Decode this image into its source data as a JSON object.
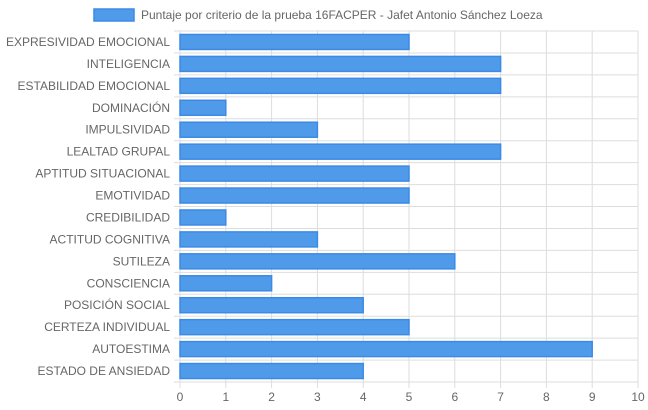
{
  "chart_data": {
    "type": "bar",
    "orientation": "horizontal",
    "categories": [
      "EXPRESIVIDAD EMOCIONAL",
      "INTELIGENCIA",
      "ESTABILIDAD EMOCIONAL",
      "DOMINACIÓN",
      "IMPULSIVIDAD",
      "LEALTAD GRUPAL",
      "APTITUD SITUACIONAL",
      "EMOTIVIDAD",
      "CREDIBILIDAD",
      "ACTITUD COGNITIVA",
      "SUTILEZA",
      "CONSCIENCIA",
      "POSICIÓN SOCIAL",
      "CERTEZA INDIVIDUAL",
      "AUTOESTIMA",
      "ESTADO DE ANSIEDAD"
    ],
    "series": [
      {
        "name": "Puntaje por criterio de la prueba 16FACPER - Jafet Antonio Sánchez Loeza",
        "values": [
          5,
          7,
          7,
          1,
          3,
          7,
          5,
          5,
          1,
          3,
          6,
          2,
          4,
          5,
          9,
          4
        ]
      }
    ],
    "xlim": [
      0,
      10
    ],
    "x_ticks": [
      "0",
      "1",
      "2",
      "3",
      "4",
      "5",
      "6",
      "7",
      "8",
      "9",
      "10"
    ],
    "grid": true,
    "legend_position": "top",
    "colors": {
      "bar_fill": "#4f9bea",
      "bar_stroke": "#3b8ae6",
      "grid": "#dddddd",
      "text": "#666666"
    }
  }
}
